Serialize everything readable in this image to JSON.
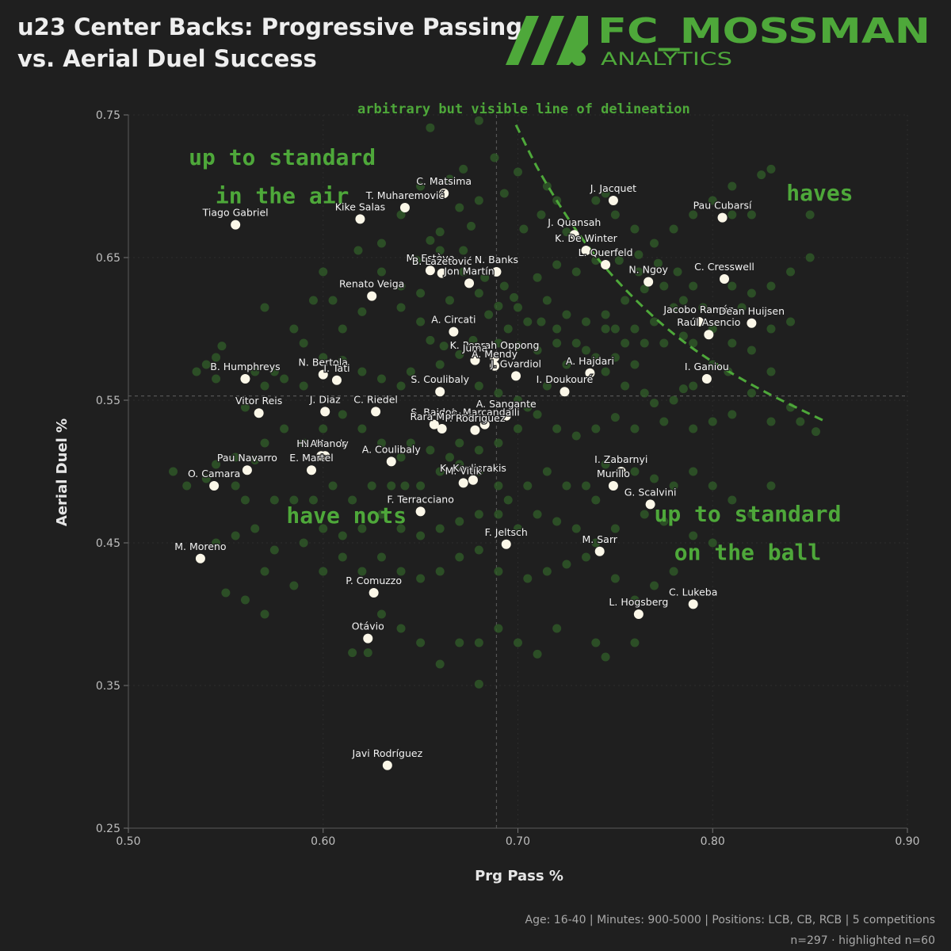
{
  "title_line1": "u23 Center Backs: Progressive Passing",
  "title_line2": "vs. Aerial Duel Success",
  "logo": {
    "name": "FC_MOSSMAN",
    "subtitle": "ANALYTICS",
    "color": "#4ea83a"
  },
  "footer_line1": "Age: 16-40 | Minutes: 900-5000 | Positions: LCB, CB, RCB | 5 competitions",
  "footer_line2": "n=297 · highlighted n=60",
  "colors": {
    "background": "#1f1f1f",
    "accent": "#4ea83a",
    "background_points": "#2f5a28",
    "highlight_points": "#fbf7e8"
  },
  "chart_data": {
    "type": "scatter",
    "xlabel": "Prg Pass %",
    "ylabel": "Aerial Duel %",
    "xlim": [
      0.5,
      0.9
    ],
    "ylim": [
      0.25,
      0.75
    ],
    "xticks": [
      "0.50",
      "0.60",
      "0.70",
      "0.80",
      "0.90"
    ],
    "yticks": [
      "0.25",
      "0.35",
      "0.45",
      "0.55",
      "0.65",
      "0.75"
    ],
    "reference_lines": {
      "x": 0.689,
      "y": 0.553
    },
    "delineation_curve": [
      [
        0.699,
        0.743
      ],
      [
        0.713,
        0.704
      ],
      [
        0.74,
        0.648
      ],
      [
        0.78,
        0.594
      ],
      [
        0.82,
        0.56
      ],
      [
        0.858,
        0.535
      ]
    ],
    "annotations": [
      {
        "text": "arbitrary but visible line of delineation",
        "x": 0.703,
        "y": 0.751,
        "size": "small"
      },
      {
        "text": "up to standard",
        "x": 0.579,
        "y": 0.715,
        "size": "large"
      },
      {
        "text": "in the air",
        "x": 0.579,
        "y": 0.688,
        "size": "large"
      },
      {
        "text": "haves",
        "x": 0.855,
        "y": 0.69,
        "size": "large"
      },
      {
        "text": "have nots",
        "x": 0.612,
        "y": 0.464,
        "size": "large"
      },
      {
        "text": "up to standard",
        "x": 0.818,
        "y": 0.465,
        "size": "large"
      },
      {
        "text": "on the ball",
        "x": 0.818,
        "y": 0.438,
        "size": "large"
      }
    ],
    "highlighted": [
      {
        "name": "Tiago Gabriel",
        "x": 0.555,
        "y": 0.673
      },
      {
        "name": "C. Matsima",
        "x": 0.662,
        "y": 0.695
      },
      {
        "name": "T. Muharemović",
        "x": 0.642,
        "y": 0.685
      },
      {
        "name": "Kike Salas",
        "x": 0.619,
        "y": 0.677
      },
      {
        "name": "J. Jacquet",
        "x": 0.749,
        "y": 0.69
      },
      {
        "name": "Pau Cubarsí",
        "x": 0.805,
        "y": 0.678
      },
      {
        "name": "J. Quansah",
        "x": 0.729,
        "y": 0.666
      },
      {
        "name": "K. De Winter",
        "x": 0.735,
        "y": 0.655
      },
      {
        "name": "L. Querfeld",
        "x": 0.745,
        "y": 0.645
      },
      {
        "name": "N. Ngoy",
        "x": 0.767,
        "y": 0.633
      },
      {
        "name": "C. Cresswell",
        "x": 0.806,
        "y": 0.635
      },
      {
        "name": "M. Estève",
        "x": 0.655,
        "y": 0.641
      },
      {
        "name": "B. Lazetović",
        "x": 0.661,
        "y": 0.639
      },
      {
        "name": "N. Banks",
        "x": 0.689,
        "y": 0.64
      },
      {
        "name": "Jon Martín",
        "x": 0.675,
        "y": 0.632
      },
      {
        "name": "Renato Veiga",
        "x": 0.625,
        "y": 0.623
      },
      {
        "name": "Jacobo Ramón",
        "x": 0.793,
        "y": 0.605
      },
      {
        "name": "Dean Huijsen",
        "x": 0.82,
        "y": 0.604
      },
      {
        "name": "Raúl Asencio",
        "x": 0.798,
        "y": 0.596
      },
      {
        "name": "A. Circati",
        "x": 0.667,
        "y": 0.598
      },
      {
        "name": "K. Peprah Oppong",
        "x": 0.688,
        "y": 0.58
      },
      {
        "name": "Juma",
        "x": 0.678,
        "y": 0.578
      },
      {
        "name": "A. Mendy",
        "x": 0.688,
        "y": 0.574
      },
      {
        "name": "J. Gvardiol",
        "x": 0.699,
        "y": 0.567
      },
      {
        "name": "A. Hajdari",
        "x": 0.737,
        "y": 0.569
      },
      {
        "name": "I. Ganiou",
        "x": 0.797,
        "y": 0.565
      },
      {
        "name": "B. Humphreys",
        "x": 0.56,
        "y": 0.565
      },
      {
        "name": "N. Bertola",
        "x": 0.6,
        "y": 0.568
      },
      {
        "name": "I. Tati",
        "x": 0.607,
        "y": 0.564
      },
      {
        "name": "S. Coulibaly",
        "x": 0.66,
        "y": 0.556
      },
      {
        "name": "I. Doukouré",
        "x": 0.724,
        "y": 0.556
      },
      {
        "name": "Vitor Reis",
        "x": 0.567,
        "y": 0.541
      },
      {
        "name": "J. Diaz",
        "x": 0.601,
        "y": 0.542
      },
      {
        "name": "C. Riedel",
        "x": 0.627,
        "y": 0.542
      },
      {
        "name": "A. Marcandalli",
        "x": 0.683,
        "y": 0.533
      },
      {
        "name": "A. Sangante",
        "x": 0.694,
        "y": 0.539
      },
      {
        "name": "S. Baidoo",
        "x": 0.657,
        "y": 0.533
      },
      {
        "name": "Rara Martino",
        "x": 0.661,
        "y": 0.53
      },
      {
        "name": "P. Rodriguez",
        "x": 0.678,
        "y": 0.529
      },
      {
        "name": "N. Mendy",
        "x": 0.601,
        "y": 0.511
      },
      {
        "name": "A. Coulibaly",
        "x": 0.635,
        "y": 0.507
      },
      {
        "name": "E. Martel",
        "x": 0.594,
        "y": 0.501
      },
      {
        "name": "H. Ahanor",
        "x": 0.599,
        "y": 0.511
      },
      {
        "name": "Pau Navarro",
        "x": 0.561,
        "y": 0.501
      },
      {
        "name": "O. Camara",
        "x": 0.544,
        "y": 0.49
      },
      {
        "name": "K. Koulierakis",
        "x": 0.677,
        "y": 0.494
      },
      {
        "name": "M. Vitík",
        "x": 0.672,
        "y": 0.492
      },
      {
        "name": "I. Zabarnyi",
        "x": 0.753,
        "y": 0.5
      },
      {
        "name": "Murillo",
        "x": 0.749,
        "y": 0.49
      },
      {
        "name": "G. Scalvini",
        "x": 0.768,
        "y": 0.477
      },
      {
        "name": "F. Terracciano",
        "x": 0.65,
        "y": 0.472
      },
      {
        "name": "M. Moreno",
        "x": 0.537,
        "y": 0.439
      },
      {
        "name": "F. Jeltsch",
        "x": 0.694,
        "y": 0.449
      },
      {
        "name": "M. Sarr",
        "x": 0.742,
        "y": 0.444
      },
      {
        "name": "P. Comuzzo",
        "x": 0.626,
        "y": 0.415
      },
      {
        "name": "C. Lukeba",
        "x": 0.79,
        "y": 0.407
      },
      {
        "name": "L. Hogsberg",
        "x": 0.762,
        "y": 0.4
      },
      {
        "name": "Otávio",
        "x": 0.623,
        "y": 0.383
      },
      {
        "name": "Javi Rodríguez",
        "x": 0.633,
        "y": 0.294
      },
      {
        "name": "C. Matsima (2)",
        "x": 0.662,
        "y": 0.695,
        "hidden_label": true
      }
    ],
    "background_points": [
      [
        0.655,
        0.741
      ],
      [
        0.68,
        0.746
      ],
      [
        0.688,
        0.72
      ],
      [
        0.693,
        0.695
      ],
      [
        0.64,
        0.68
      ],
      [
        0.63,
        0.66
      ],
      [
        0.618,
        0.655
      ],
      [
        0.648,
        0.648
      ],
      [
        0.655,
        0.662
      ],
      [
        0.66,
        0.668
      ],
      [
        0.672,
        0.64
      ],
      [
        0.683,
        0.636
      ],
      [
        0.693,
        0.63
      ],
      [
        0.71,
        0.636
      ],
      [
        0.698,
        0.622
      ],
      [
        0.69,
        0.616
      ],
      [
        0.685,
        0.61
      ],
      [
        0.705,
        0.605
      ],
      [
        0.712,
        0.605
      ],
      [
        0.72,
        0.6
      ],
      [
        0.695,
        0.6
      ],
      [
        0.677,
        0.592
      ],
      [
        0.662,
        0.588
      ],
      [
        0.655,
        0.592
      ],
      [
        0.65,
        0.605
      ],
      [
        0.64,
        0.615
      ],
      [
        0.62,
        0.612
      ],
      [
        0.61,
        0.6
      ],
      [
        0.605,
        0.62
      ],
      [
        0.595,
        0.62
      ],
      [
        0.6,
        0.58
      ],
      [
        0.61,
        0.578
      ],
      [
        0.59,
        0.56
      ],
      [
        0.58,
        0.565
      ],
      [
        0.57,
        0.56
      ],
      [
        0.56,
        0.545
      ],
      [
        0.545,
        0.565
      ],
      [
        0.54,
        0.575
      ],
      [
        0.545,
        0.58
      ],
      [
        0.548,
        0.588
      ],
      [
        0.535,
        0.57
      ],
      [
        0.565,
        0.57
      ],
      [
        0.575,
        0.57
      ],
      [
        0.62,
        0.57
      ],
      [
        0.63,
        0.565
      ],
      [
        0.64,
        0.56
      ],
      [
        0.645,
        0.57
      ],
      [
        0.66,
        0.575
      ],
      [
        0.67,
        0.582
      ],
      [
        0.68,
        0.56
      ],
      [
        0.69,
        0.555
      ],
      [
        0.7,
        0.55
      ],
      [
        0.705,
        0.545
      ],
      [
        0.715,
        0.56
      ],
      [
        0.725,
        0.575
      ],
      [
        0.735,
        0.585
      ],
      [
        0.74,
        0.58
      ],
      [
        0.75,
        0.58
      ],
      [
        0.76,
        0.575
      ],
      [
        0.745,
        0.57
      ],
      [
        0.755,
        0.56
      ],
      [
        0.765,
        0.555
      ],
      [
        0.77,
        0.548
      ],
      [
        0.78,
        0.55
      ],
      [
        0.785,
        0.558
      ],
      [
        0.79,
        0.56
      ],
      [
        0.8,
        0.575
      ],
      [
        0.808,
        0.57
      ],
      [
        0.82,
        0.555
      ],
      [
        0.83,
        0.57
      ],
      [
        0.845,
        0.535
      ],
      [
        0.853,
        0.528
      ],
      [
        0.84,
        0.545
      ],
      [
        0.83,
        0.535
      ],
      [
        0.81,
        0.54
      ],
      [
        0.8,
        0.535
      ],
      [
        0.79,
        0.53
      ],
      [
        0.775,
        0.535
      ],
      [
        0.76,
        0.53
      ],
      [
        0.75,
        0.538
      ],
      [
        0.74,
        0.53
      ],
      [
        0.73,
        0.525
      ],
      [
        0.72,
        0.53
      ],
      [
        0.71,
        0.54
      ],
      [
        0.7,
        0.53
      ],
      [
        0.69,
        0.52
      ],
      [
        0.68,
        0.515
      ],
      [
        0.67,
        0.52
      ],
      [
        0.665,
        0.51
      ],
      [
        0.655,
        0.515
      ],
      [
        0.645,
        0.52
      ],
      [
        0.64,
        0.51
      ],
      [
        0.63,
        0.52
      ],
      [
        0.62,
        0.53
      ],
      [
        0.61,
        0.54
      ],
      [
        0.6,
        0.53
      ],
      [
        0.59,
        0.52
      ],
      [
        0.58,
        0.53
      ],
      [
        0.57,
        0.52
      ],
      [
        0.565,
        0.508
      ],
      [
        0.555,
        0.51
      ],
      [
        0.545,
        0.505
      ],
      [
        0.523,
        0.5
      ],
      [
        0.53,
        0.49
      ],
      [
        0.54,
        0.495
      ],
      [
        0.555,
        0.49
      ],
      [
        0.56,
        0.48
      ],
      [
        0.575,
        0.48
      ],
      [
        0.585,
        0.48
      ],
      [
        0.595,
        0.48
      ],
      [
        0.605,
        0.49
      ],
      [
        0.615,
        0.48
      ],
      [
        0.625,
        0.49
      ],
      [
        0.635,
        0.49
      ],
      [
        0.642,
        0.49
      ],
      [
        0.65,
        0.49
      ],
      [
        0.66,
        0.5
      ],
      [
        0.67,
        0.505
      ],
      [
        0.68,
        0.5
      ],
      [
        0.69,
        0.49
      ],
      [
        0.695,
        0.48
      ],
      [
        0.705,
        0.49
      ],
      [
        0.715,
        0.5
      ],
      [
        0.725,
        0.49
      ],
      [
        0.735,
        0.49
      ],
      [
        0.74,
        0.48
      ],
      [
        0.745,
        0.505
      ],
      [
        0.76,
        0.5
      ],
      [
        0.77,
        0.495
      ],
      [
        0.78,
        0.49
      ],
      [
        0.79,
        0.5
      ],
      [
        0.8,
        0.49
      ],
      [
        0.81,
        0.48
      ],
      [
        0.82,
        0.47
      ],
      [
        0.83,
        0.49
      ],
      [
        0.8,
        0.45
      ],
      [
        0.79,
        0.455
      ],
      [
        0.775,
        0.465
      ],
      [
        0.765,
        0.47
      ],
      [
        0.75,
        0.46
      ],
      [
        0.74,
        0.45
      ],
      [
        0.73,
        0.46
      ],
      [
        0.72,
        0.465
      ],
      [
        0.71,
        0.47
      ],
      [
        0.7,
        0.46
      ],
      [
        0.69,
        0.47
      ],
      [
        0.68,
        0.47
      ],
      [
        0.67,
        0.465
      ],
      [
        0.66,
        0.46
      ],
      [
        0.65,
        0.455
      ],
      [
        0.64,
        0.46
      ],
      [
        0.63,
        0.47
      ],
      [
        0.62,
        0.46
      ],
      [
        0.61,
        0.455
      ],
      [
        0.6,
        0.46
      ],
      [
        0.59,
        0.45
      ],
      [
        0.575,
        0.445
      ],
      [
        0.565,
        0.46
      ],
      [
        0.555,
        0.455
      ],
      [
        0.545,
        0.45
      ],
      [
        0.56,
        0.41
      ],
      [
        0.585,
        0.42
      ],
      [
        0.6,
        0.43
      ],
      [
        0.61,
        0.44
      ],
      [
        0.62,
        0.43
      ],
      [
        0.63,
        0.44
      ],
      [
        0.64,
        0.43
      ],
      [
        0.65,
        0.425
      ],
      [
        0.66,
        0.43
      ],
      [
        0.67,
        0.44
      ],
      [
        0.68,
        0.445
      ],
      [
        0.69,
        0.43
      ],
      [
        0.705,
        0.425
      ],
      [
        0.715,
        0.43
      ],
      [
        0.725,
        0.435
      ],
      [
        0.735,
        0.44
      ],
      [
        0.75,
        0.425
      ],
      [
        0.76,
        0.41
      ],
      [
        0.77,
        0.42
      ],
      [
        0.78,
        0.43
      ],
      [
        0.76,
        0.38
      ],
      [
        0.745,
        0.37
      ],
      [
        0.74,
        0.38
      ],
      [
        0.72,
        0.39
      ],
      [
        0.71,
        0.372
      ],
      [
        0.7,
        0.38
      ],
      [
        0.69,
        0.39
      ],
      [
        0.68,
        0.38
      ],
      [
        0.67,
        0.38
      ],
      [
        0.66,
        0.365
      ],
      [
        0.65,
        0.38
      ],
      [
        0.64,
        0.39
      ],
      [
        0.63,
        0.4
      ],
      [
        0.615,
        0.373
      ],
      [
        0.623,
        0.373
      ],
      [
        0.68,
        0.351
      ],
      [
        0.55,
        0.415
      ],
      [
        0.57,
        0.43
      ],
      [
        0.57,
        0.4
      ],
      [
        0.59,
        0.59
      ],
      [
        0.585,
        0.6
      ],
      [
        0.57,
        0.615
      ],
      [
        0.6,
        0.64
      ],
      [
        0.63,
        0.64
      ],
      [
        0.64,
        0.63
      ],
      [
        0.65,
        0.625
      ],
      [
        0.665,
        0.62
      ],
      [
        0.68,
        0.625
      ],
      [
        0.7,
        0.615
      ],
      [
        0.715,
        0.62
      ],
      [
        0.72,
        0.645
      ],
      [
        0.73,
        0.64
      ],
      [
        0.74,
        0.648
      ],
      [
        0.752,
        0.648
      ],
      [
        0.762,
        0.64
      ],
      [
        0.772,
        0.646
      ],
      [
        0.782,
        0.64
      ],
      [
        0.79,
        0.63
      ],
      [
        0.78,
        0.615
      ],
      [
        0.77,
        0.605
      ],
      [
        0.76,
        0.6
      ],
      [
        0.75,
        0.6
      ],
      [
        0.745,
        0.61
      ],
      [
        0.755,
        0.62
      ],
      [
        0.765,
        0.628
      ],
      [
        0.775,
        0.63
      ],
      [
        0.785,
        0.62
      ],
      [
        0.795,
        0.615
      ],
      [
        0.81,
        0.63
      ],
      [
        0.815,
        0.615
      ],
      [
        0.82,
        0.625
      ],
      [
        0.83,
        0.6
      ],
      [
        0.84,
        0.605
      ],
      [
        0.82,
        0.585
      ],
      [
        0.81,
        0.59
      ],
      [
        0.8,
        0.6
      ],
      [
        0.79,
        0.59
      ],
      [
        0.785,
        0.595
      ],
      [
        0.775,
        0.59
      ],
      [
        0.765,
        0.59
      ],
      [
        0.755,
        0.59
      ],
      [
        0.745,
        0.6
      ],
      [
        0.735,
        0.605
      ],
      [
        0.725,
        0.61
      ],
      [
        0.73,
        0.59
      ],
      [
        0.72,
        0.59
      ],
      [
        0.71,
        0.585
      ],
      [
        0.7,
        0.588
      ],
      [
        0.69,
        0.59
      ],
      [
        0.703,
        0.67
      ],
      [
        0.712,
        0.68
      ],
      [
        0.72,
        0.69
      ],
      [
        0.715,
        0.7
      ],
      [
        0.7,
        0.71
      ],
      [
        0.725,
        0.668
      ],
      [
        0.74,
        0.69
      ],
      [
        0.745,
        0.695
      ],
      [
        0.75,
        0.68
      ],
      [
        0.76,
        0.67
      ],
      [
        0.77,
        0.66
      ],
      [
        0.78,
        0.67
      ],
      [
        0.79,
        0.68
      ],
      [
        0.8,
        0.69
      ],
      [
        0.81,
        0.68
      ],
      [
        0.82,
        0.68
      ],
      [
        0.83,
        0.712
      ],
      [
        0.825,
        0.708
      ],
      [
        0.81,
        0.7
      ],
      [
        0.85,
        0.68
      ],
      [
        0.85,
        0.65
      ],
      [
        0.84,
        0.64
      ],
      [
        0.83,
        0.63
      ],
      [
        0.762,
        0.652
      ],
      [
        0.665,
        0.705
      ],
      [
        0.672,
        0.712
      ],
      [
        0.65,
        0.7
      ],
      [
        0.67,
        0.685
      ],
      [
        0.68,
        0.69
      ],
      [
        0.676,
        0.672
      ],
      [
        0.672,
        0.655
      ],
      [
        0.66,
        0.655
      ]
    ]
  }
}
